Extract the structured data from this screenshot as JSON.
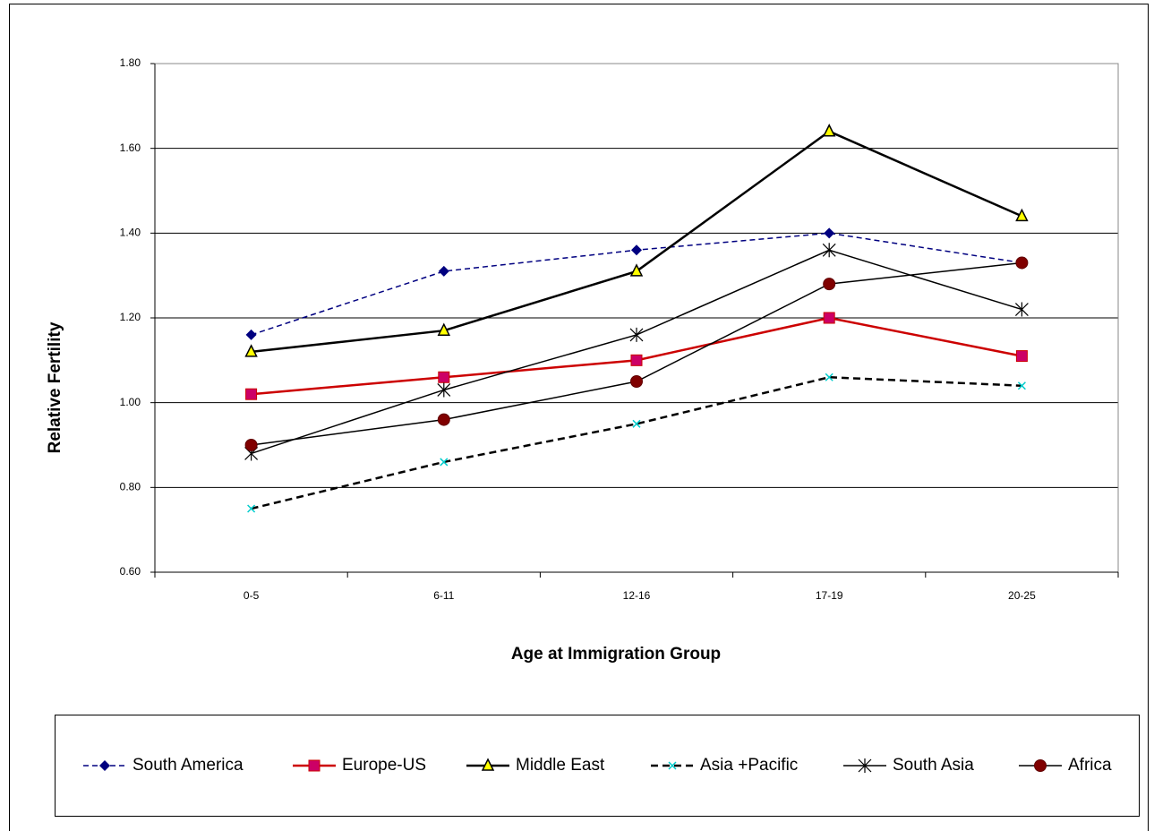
{
  "chart_data": {
    "type": "line",
    "x_label": "Age at Immigration Group",
    "y_label": "Relative Fertility",
    "categories": [
      "0-5",
      "6-11",
      "12-16",
      "17-19",
      "20-25"
    ],
    "ylim": [
      0.6,
      1.8
    ],
    "yticks": [
      {
        "value": 0.6,
        "label": "0.60"
      },
      {
        "value": 0.8,
        "label": "0.80"
      },
      {
        "value": 1.0,
        "label": "1.00"
      },
      {
        "value": 1.2,
        "label": "1.20"
      },
      {
        "value": 1.4,
        "label": "1.40"
      },
      {
        "value": 1.6,
        "label": "1.60"
      },
      {
        "value": 1.8,
        "label": "1.80"
      }
    ],
    "grid": true,
    "legend": "bottom",
    "series": [
      {
        "name": "South America",
        "color": "#000080",
        "marker": "diamond",
        "dash": true,
        "values": [
          1.16,
          1.31,
          1.36,
          1.4,
          1.33
        ]
      },
      {
        "name": "Europe-US",
        "color": "#cc0000",
        "marker": "square",
        "dash": false,
        "values": [
          1.02,
          1.06,
          1.1,
          1.2,
          1.11
        ]
      },
      {
        "name": "Middle East",
        "color": "#000000",
        "marker": "triangle",
        "dash": false,
        "values": [
          1.12,
          1.17,
          1.31,
          1.64,
          1.44
        ]
      },
      {
        "name": "Asia +Pacific",
        "color": "#000000",
        "marker": "x",
        "dash": true,
        "values": [
          0.75,
          0.86,
          0.95,
          1.06,
          1.04
        ]
      },
      {
        "name": "South Asia",
        "color": "#000000",
        "marker": "star",
        "dash": false,
        "values": [
          0.88,
          1.03,
          1.16,
          1.36,
          1.22
        ]
      },
      {
        "name": "Africa",
        "color": "#000000",
        "marker": "circle",
        "dash": false,
        "values": [
          0.9,
          0.96,
          1.05,
          1.28,
          1.33
        ]
      }
    ]
  }
}
